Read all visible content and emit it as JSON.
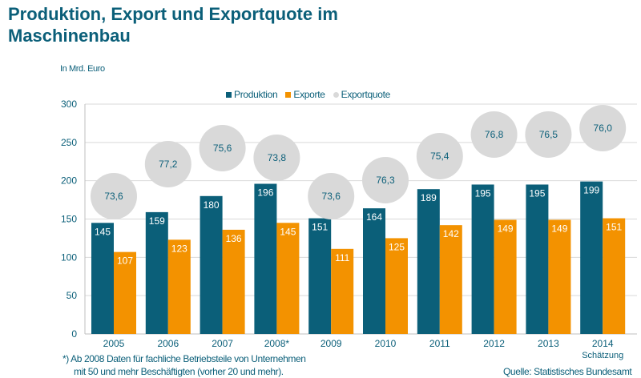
{
  "chart_data": {
    "type": "bar",
    "title": "Produktion, Export und Exportquote im Maschinenbau",
    "ylabel": "In Mrd. Euro",
    "ylim": [
      0,
      300
    ],
    "yticks": [
      0,
      50,
      100,
      150,
      200,
      250,
      300
    ],
    "grid": true,
    "legend_position": "top",
    "categories": [
      "2005",
      "2006",
      "2007",
      "2008*",
      "2009",
      "2010",
      "2011",
      "2012",
      "2013",
      "2014"
    ],
    "category_sublabels": {
      "2014": "Schätzung"
    },
    "series": [
      {
        "name": "Produktion",
        "color": "#0b5f79",
        "values": [
          145,
          159,
          180,
          196,
          151,
          164,
          189,
          195,
          195,
          199
        ]
      },
      {
        "name": "Exporte",
        "color": "#f39200",
        "values": [
          107,
          123,
          136,
          145,
          111,
          125,
          142,
          149,
          149,
          151
        ]
      },
      {
        "name": "Exportquote",
        "color": "#d9d9d9",
        "type": "bubble",
        "values": [
          "73,6",
          "77,2",
          "75,6",
          "73,8",
          "73,6",
          "76,3",
          "75,4",
          "76,8",
          "76,5",
          "76,0"
        ]
      }
    ]
  },
  "footnote_line1": "*)  Ab 2008 Daten für fachliche Betriebsteile von Unternehmen",
  "footnote_line2": "mit 50 und mehr Beschäftigten (vorher 20 und mehr).",
  "source": "Quelle: Statistisches Bundesamt"
}
